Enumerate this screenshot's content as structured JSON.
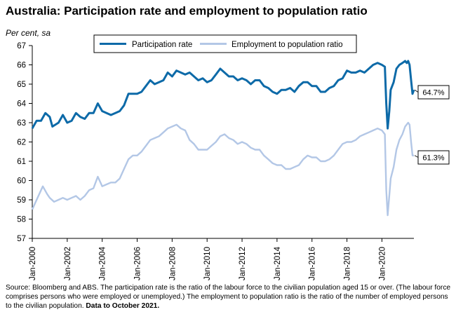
{
  "chart_data": {
    "type": "line",
    "title": "Australia: Participation rate and employment to population ratio",
    "ylabel": "Per cent, sa",
    "ylim": [
      57,
      67
    ],
    "yticks": [
      57,
      58,
      59,
      60,
      61,
      62,
      63,
      64,
      65,
      66,
      67
    ],
    "xlim": [
      2000.0,
      2021.83
    ],
    "xticks": [
      {
        "label": "Jan-2000",
        "x": 2000
      },
      {
        "label": "Jan-2002",
        "x": 2002
      },
      {
        "label": "Jan-2004",
        "x": 2004
      },
      {
        "label": "Jan-2006",
        "x": 2006
      },
      {
        "label": "Jan-2008",
        "x": 2008
      },
      {
        "label": "Jan-2010",
        "x": 2010
      },
      {
        "label": "Jan-2012",
        "x": 2012
      },
      {
        "label": "Jan-2014",
        "x": 2014
      },
      {
        "label": "Jan-2016",
        "x": 2016
      },
      {
        "label": "Jan-2018",
        "x": 2018
      },
      {
        "label": "Jan-2020",
        "x": 2020
      }
    ],
    "grid": false,
    "legend_position": "top-center",
    "series": [
      {
        "name": "Participation rate",
        "color": "#0d6aa8",
        "end_label": "64.7%",
        "points": [
          [
            2000.0,
            62.7
          ],
          [
            2000.25,
            63.1
          ],
          [
            2000.5,
            63.1
          ],
          [
            2000.75,
            63.5
          ],
          [
            2001.0,
            63.3
          ],
          [
            2001.15,
            62.8
          ],
          [
            2001.5,
            63.0
          ],
          [
            2001.75,
            63.4
          ],
          [
            2002.0,
            63.0
          ],
          [
            2002.25,
            63.1
          ],
          [
            2002.5,
            63.5
          ],
          [
            2002.75,
            63.3
          ],
          [
            2003.0,
            63.2
          ],
          [
            2003.25,
            63.5
          ],
          [
            2003.5,
            63.5
          ],
          [
            2003.75,
            64.0
          ],
          [
            2004.0,
            63.6
          ],
          [
            2004.25,
            63.5
          ],
          [
            2004.5,
            63.4
          ],
          [
            2004.75,
            63.5
          ],
          [
            2005.0,
            63.6
          ],
          [
            2005.25,
            63.9
          ],
          [
            2005.5,
            64.5
          ],
          [
            2005.75,
            64.5
          ],
          [
            2006.0,
            64.5
          ],
          [
            2006.25,
            64.6
          ],
          [
            2006.5,
            64.9
          ],
          [
            2006.75,
            65.2
          ],
          [
            2007.0,
            65.0
          ],
          [
            2007.25,
            65.1
          ],
          [
            2007.5,
            65.2
          ],
          [
            2007.75,
            65.6
          ],
          [
            2008.0,
            65.4
          ],
          [
            2008.25,
            65.7
          ],
          [
            2008.5,
            65.6
          ],
          [
            2008.75,
            65.5
          ],
          [
            2009.0,
            65.6
          ],
          [
            2009.25,
            65.4
          ],
          [
            2009.5,
            65.2
          ],
          [
            2009.75,
            65.3
          ],
          [
            2010.0,
            65.1
          ],
          [
            2010.25,
            65.2
          ],
          [
            2010.5,
            65.5
          ],
          [
            2010.75,
            65.8
          ],
          [
            2011.0,
            65.6
          ],
          [
            2011.25,
            65.4
          ],
          [
            2011.5,
            65.4
          ],
          [
            2011.75,
            65.2
          ],
          [
            2012.0,
            65.3
          ],
          [
            2012.25,
            65.2
          ],
          [
            2012.5,
            65.0
          ],
          [
            2012.75,
            65.2
          ],
          [
            2013.0,
            65.2
          ],
          [
            2013.25,
            64.9
          ],
          [
            2013.5,
            64.8
          ],
          [
            2013.75,
            64.6
          ],
          [
            2014.0,
            64.5
          ],
          [
            2014.25,
            64.7
          ],
          [
            2014.5,
            64.7
          ],
          [
            2014.75,
            64.8
          ],
          [
            2015.0,
            64.6
          ],
          [
            2015.25,
            64.9
          ],
          [
            2015.5,
            65.1
          ],
          [
            2015.75,
            65.1
          ],
          [
            2016.0,
            64.9
          ],
          [
            2016.25,
            64.9
          ],
          [
            2016.5,
            64.6
          ],
          [
            2016.75,
            64.6
          ],
          [
            2017.0,
            64.8
          ],
          [
            2017.25,
            64.9
          ],
          [
            2017.5,
            65.2
          ],
          [
            2017.75,
            65.3
          ],
          [
            2018.0,
            65.7
          ],
          [
            2018.25,
            65.6
          ],
          [
            2018.5,
            65.6
          ],
          [
            2018.75,
            65.7
          ],
          [
            2019.0,
            65.6
          ],
          [
            2019.25,
            65.8
          ],
          [
            2019.5,
            66.0
          ],
          [
            2019.75,
            66.1
          ],
          [
            2020.0,
            66.0
          ],
          [
            2020.17,
            65.9
          ],
          [
            2020.25,
            64.0
          ],
          [
            2020.33,
            62.7
          ],
          [
            2020.42,
            63.6
          ],
          [
            2020.5,
            64.7
          ],
          [
            2020.67,
            65.1
          ],
          [
            2020.83,
            65.8
          ],
          [
            2021.0,
            66.0
          ],
          [
            2021.17,
            66.1
          ],
          [
            2021.33,
            66.2
          ],
          [
            2021.42,
            66.1
          ],
          [
            2021.5,
            66.2
          ],
          [
            2021.58,
            66.0
          ],
          [
            2021.67,
            65.2
          ],
          [
            2021.75,
            64.5
          ],
          [
            2021.83,
            64.7
          ]
        ]
      },
      {
        "name": "Employment to population ratio",
        "color": "#b3c7e6",
        "end_label": "61.3%",
        "points": [
          [
            2000.0,
            58.5
          ],
          [
            2000.25,
            59.0
          ],
          [
            2000.5,
            59.5
          ],
          [
            2000.6,
            59.7
          ],
          [
            2000.85,
            59.3
          ],
          [
            2001.0,
            59.1
          ],
          [
            2001.25,
            58.9
          ],
          [
            2001.5,
            59.0
          ],
          [
            2001.75,
            59.1
          ],
          [
            2002.0,
            59.0
          ],
          [
            2002.25,
            59.1
          ],
          [
            2002.5,
            59.2
          ],
          [
            2002.75,
            59.0
          ],
          [
            2003.0,
            59.2
          ],
          [
            2003.25,
            59.5
          ],
          [
            2003.5,
            59.6
          ],
          [
            2003.75,
            60.2
          ],
          [
            2004.0,
            59.7
          ],
          [
            2004.25,
            59.8
          ],
          [
            2004.5,
            59.9
          ],
          [
            2004.75,
            59.9
          ],
          [
            2005.0,
            60.1
          ],
          [
            2005.25,
            60.6
          ],
          [
            2005.5,
            61.1
          ],
          [
            2005.75,
            61.3
          ],
          [
            2006.0,
            61.3
          ],
          [
            2006.25,
            61.5
          ],
          [
            2006.5,
            61.8
          ],
          [
            2006.75,
            62.1
          ],
          [
            2007.0,
            62.2
          ],
          [
            2007.25,
            62.3
          ],
          [
            2007.5,
            62.5
          ],
          [
            2007.75,
            62.7
          ],
          [
            2008.0,
            62.8
          ],
          [
            2008.25,
            62.9
          ],
          [
            2008.5,
            62.7
          ],
          [
            2008.75,
            62.6
          ],
          [
            2009.0,
            62.1
          ],
          [
            2009.25,
            61.9
          ],
          [
            2009.5,
            61.6
          ],
          [
            2009.75,
            61.6
          ],
          [
            2010.0,
            61.6
          ],
          [
            2010.25,
            61.8
          ],
          [
            2010.5,
            62.0
          ],
          [
            2010.75,
            62.3
          ],
          [
            2011.0,
            62.4
          ],
          [
            2011.25,
            62.2
          ],
          [
            2011.5,
            62.1
          ],
          [
            2011.75,
            61.9
          ],
          [
            2012.0,
            62.0
          ],
          [
            2012.25,
            61.9
          ],
          [
            2012.5,
            61.7
          ],
          [
            2012.75,
            61.6
          ],
          [
            2013.0,
            61.6
          ],
          [
            2013.25,
            61.3
          ],
          [
            2013.5,
            61.1
          ],
          [
            2013.75,
            60.9
          ],
          [
            2014.0,
            60.8
          ],
          [
            2014.25,
            60.8
          ],
          [
            2014.5,
            60.6
          ],
          [
            2014.75,
            60.6
          ],
          [
            2015.0,
            60.7
          ],
          [
            2015.25,
            60.8
          ],
          [
            2015.5,
            61.1
          ],
          [
            2015.75,
            61.3
          ],
          [
            2016.0,
            61.2
          ],
          [
            2016.25,
            61.2
          ],
          [
            2016.5,
            61.0
          ],
          [
            2016.75,
            61.0
          ],
          [
            2017.0,
            61.1
          ],
          [
            2017.25,
            61.3
          ],
          [
            2017.5,
            61.6
          ],
          [
            2017.75,
            61.9
          ],
          [
            2018.0,
            62.0
          ],
          [
            2018.25,
            62.0
          ],
          [
            2018.5,
            62.1
          ],
          [
            2018.75,
            62.3
          ],
          [
            2019.0,
            62.4
          ],
          [
            2019.25,
            62.5
          ],
          [
            2019.5,
            62.6
          ],
          [
            2019.75,
            62.7
          ],
          [
            2020.0,
            62.6
          ],
          [
            2020.17,
            62.4
          ],
          [
            2020.25,
            59.5
          ],
          [
            2020.33,
            58.2
          ],
          [
            2020.42,
            59.2
          ],
          [
            2020.5,
            60.1
          ],
          [
            2020.67,
            60.7
          ],
          [
            2020.83,
            61.6
          ],
          [
            2021.0,
            62.1
          ],
          [
            2021.17,
            62.4
          ],
          [
            2021.33,
            62.8
          ],
          [
            2021.5,
            63.0
          ],
          [
            2021.58,
            62.9
          ],
          [
            2021.67,
            62.0
          ],
          [
            2021.75,
            61.3
          ],
          [
            2021.83,
            61.3
          ]
        ]
      }
    ]
  },
  "source_text": "Source: Bloomberg and ABS.  The participation rate is the ratio of the labour force to the civilian population aged 15 or over.  (The labour force comprises persons who were employed or unemployed.)  The employment to population ratio is the ratio of the number of employed persons to the civilian population.",
  "source_bold": "Data to October 2021."
}
